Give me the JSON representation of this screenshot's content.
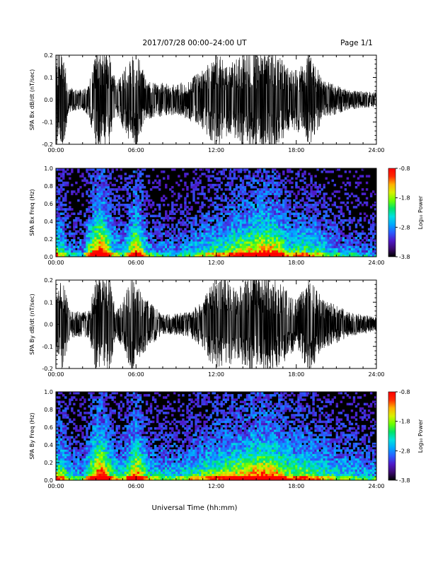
{
  "header": {
    "date_range": "2017/07/28  00:00–24:00 UT",
    "page_label": "Page 1/1"
  },
  "footer": {
    "x_axis_title": "Universal Time (hh:mm)"
  },
  "colors": {
    "waveform": "#000000",
    "colorbar": [
      "#000000",
      "#3b0a6e",
      "#4f19c8",
      "#2a5cff",
      "#00a8ff",
      "#00e0e0",
      "#00e36a",
      "#6cff00",
      "#d8f000",
      "#ffb000",
      "#ff2a00",
      "#ff0000"
    ]
  },
  "chart_data": [
    {
      "id": "bx_waveform",
      "type": "line",
      "title": "",
      "xlabel": "",
      "ylabel": "SPA Bx dB/dt (nT/sec)",
      "xlim_hours": [
        0,
        24
      ],
      "ylim": [
        -0.2,
        0.2
      ],
      "xticks": [
        "00:00",
        "06:00",
        "12:00",
        "18:00",
        "24:00"
      ],
      "yticks": [
        "0.2",
        "0.1",
        "0.0",
        "-0.1",
        "-0.2"
      ],
      "envelope": [
        {
          "t": 0.0,
          "a": 0.2
        },
        {
          "t": 0.5,
          "a": 0.2
        },
        {
          "t": 1.0,
          "a": 0.05
        },
        {
          "t": 2.0,
          "a": 0.04
        },
        {
          "t": 2.5,
          "a": 0.07
        },
        {
          "t": 3.0,
          "a": 0.2
        },
        {
          "t": 4.0,
          "a": 0.2
        },
        {
          "t": 4.5,
          "a": 0.06
        },
        {
          "t": 5.5,
          "a": 0.17
        },
        {
          "t": 6.0,
          "a": 0.2
        },
        {
          "t": 6.8,
          "a": 0.08
        },
        {
          "t": 9.0,
          "a": 0.06
        },
        {
          "t": 11.0,
          "a": 0.12
        },
        {
          "t": 12.0,
          "a": 0.2
        },
        {
          "t": 13.0,
          "a": 0.14
        },
        {
          "t": 14.0,
          "a": 0.2
        },
        {
          "t": 15.5,
          "a": 0.2
        },
        {
          "t": 16.5,
          "a": 0.2
        },
        {
          "t": 17.5,
          "a": 0.12
        },
        {
          "t": 18.5,
          "a": 0.14
        },
        {
          "t": 19.0,
          "a": 0.2
        },
        {
          "t": 20.0,
          "a": 0.08
        },
        {
          "t": 21.0,
          "a": 0.06
        },
        {
          "t": 22.0,
          "a": 0.04
        },
        {
          "t": 24.0,
          "a": 0.03
        }
      ]
    },
    {
      "id": "bx_spectrogram",
      "type": "heatmap",
      "title": "",
      "xlabel": "",
      "ylabel": "SPA Bx Freq (Hz)",
      "xlim_hours": [
        0,
        24
      ],
      "ylim": [
        0.0,
        1.0
      ],
      "xticks": [
        "00:00",
        "06:00",
        "12:00",
        "18:00",
        "24:00"
      ],
      "yticks": [
        "1.0",
        "0.8",
        "0.6",
        "0.4",
        "0.2",
        "0.0"
      ],
      "colorbar": {
        "label": "Log₁₀ Power",
        "ticks": [
          "-0.8",
          "-1.8",
          "-2.8",
          "-3.8"
        ],
        "range": [
          -3.8,
          -0.8
        ]
      },
      "activity": [
        {
          "t": 0.0,
          "a": 0.6
        },
        {
          "t": 0.5,
          "a": 0.5
        },
        {
          "t": 1.0,
          "a": 0.3
        },
        {
          "t": 2.0,
          "a": 0.3
        },
        {
          "t": 3.0,
          "a": 0.9
        },
        {
          "t": 3.5,
          "a": 1.0
        },
        {
          "t": 4.2,
          "a": 0.5
        },
        {
          "t": 5.0,
          "a": 0.35
        },
        {
          "t": 6.0,
          "a": 0.85
        },
        {
          "t": 7.0,
          "a": 0.35
        },
        {
          "t": 9.0,
          "a": 0.3
        },
        {
          "t": 11.0,
          "a": 0.45
        },
        {
          "t": 12.5,
          "a": 0.55
        },
        {
          "t": 14.0,
          "a": 0.7
        },
        {
          "t": 15.5,
          "a": 0.85
        },
        {
          "t": 16.5,
          "a": 0.8
        },
        {
          "t": 17.5,
          "a": 0.5
        },
        {
          "t": 18.5,
          "a": 0.55
        },
        {
          "t": 19.5,
          "a": 0.5
        },
        {
          "t": 21.0,
          "a": 0.35
        },
        {
          "t": 24.0,
          "a": 0.25
        }
      ]
    },
    {
      "id": "by_waveform",
      "type": "line",
      "title": "",
      "xlabel": "",
      "ylabel": "SPA By dB/dt (nT/sec)",
      "xlim_hours": [
        0,
        24
      ],
      "ylim": [
        -0.2,
        0.2
      ],
      "xticks": [
        "00:00",
        "06:00",
        "12:00",
        "18:00",
        "24:00"
      ],
      "yticks": [
        "0.2",
        "0.1",
        "0.0",
        "-0.1",
        "-0.2"
      ],
      "envelope": [
        {
          "t": 0.0,
          "a": 0.12
        },
        {
          "t": 0.5,
          "a": 0.2
        },
        {
          "t": 1.0,
          "a": 0.06
        },
        {
          "t": 2.0,
          "a": 0.05
        },
        {
          "t": 2.5,
          "a": 0.06
        },
        {
          "t": 3.0,
          "a": 0.2
        },
        {
          "t": 4.0,
          "a": 0.2
        },
        {
          "t": 4.5,
          "a": 0.05
        },
        {
          "t": 5.0,
          "a": 0.1
        },
        {
          "t": 5.7,
          "a": 0.2
        },
        {
          "t": 6.5,
          "a": 0.12
        },
        {
          "t": 8.0,
          "a": 0.04
        },
        {
          "t": 10.0,
          "a": 0.05
        },
        {
          "t": 11.0,
          "a": 0.1
        },
        {
          "t": 11.8,
          "a": 0.18
        },
        {
          "t": 12.5,
          "a": 0.2
        },
        {
          "t": 13.5,
          "a": 0.14
        },
        {
          "t": 14.5,
          "a": 0.2
        },
        {
          "t": 16.0,
          "a": 0.2
        },
        {
          "t": 17.0,
          "a": 0.16
        },
        {
          "t": 18.0,
          "a": 0.1
        },
        {
          "t": 19.0,
          "a": 0.2
        },
        {
          "t": 20.0,
          "a": 0.1
        },
        {
          "t": 21.0,
          "a": 0.08
        },
        {
          "t": 22.0,
          "a": 0.05
        },
        {
          "t": 24.0,
          "a": 0.03
        }
      ]
    },
    {
      "id": "by_spectrogram",
      "type": "heatmap",
      "title": "",
      "xlabel": "Universal Time (hh:mm)",
      "ylabel": "SPA By Freq (Hz)",
      "xlim_hours": [
        0,
        24
      ],
      "ylim": [
        0.0,
        1.0
      ],
      "xticks": [
        "00:00",
        "06:00",
        "12:00",
        "18:00",
        "24:00"
      ],
      "yticks": [
        "1.0",
        "0.8",
        "0.6",
        "0.4",
        "0.2",
        "0.0"
      ],
      "colorbar": {
        "label": "Log₁₀ Power",
        "ticks": [
          "-0.8",
          "-1.8",
          "-2.8",
          "-3.8"
        ],
        "range": [
          -3.8,
          -0.8
        ]
      },
      "activity": [
        {
          "t": 0.0,
          "a": 0.65
        },
        {
          "t": 0.5,
          "a": 0.6
        },
        {
          "t": 1.0,
          "a": 0.4
        },
        {
          "t": 2.0,
          "a": 0.35
        },
        {
          "t": 3.0,
          "a": 0.9
        },
        {
          "t": 3.5,
          "a": 1.0
        },
        {
          "t": 4.2,
          "a": 0.55
        },
        {
          "t": 5.0,
          "a": 0.45
        },
        {
          "t": 6.0,
          "a": 0.9
        },
        {
          "t": 7.0,
          "a": 0.45
        },
        {
          "t": 9.0,
          "a": 0.4
        },
        {
          "t": 11.0,
          "a": 0.55
        },
        {
          "t": 12.5,
          "a": 0.65
        },
        {
          "t": 14.0,
          "a": 0.75
        },
        {
          "t": 15.5,
          "a": 0.9
        },
        {
          "t": 16.5,
          "a": 0.8
        },
        {
          "t": 17.5,
          "a": 0.6
        },
        {
          "t": 18.5,
          "a": 0.65
        },
        {
          "t": 19.5,
          "a": 0.55
        },
        {
          "t": 21.0,
          "a": 0.45
        },
        {
          "t": 24.0,
          "a": 0.35
        }
      ]
    }
  ]
}
